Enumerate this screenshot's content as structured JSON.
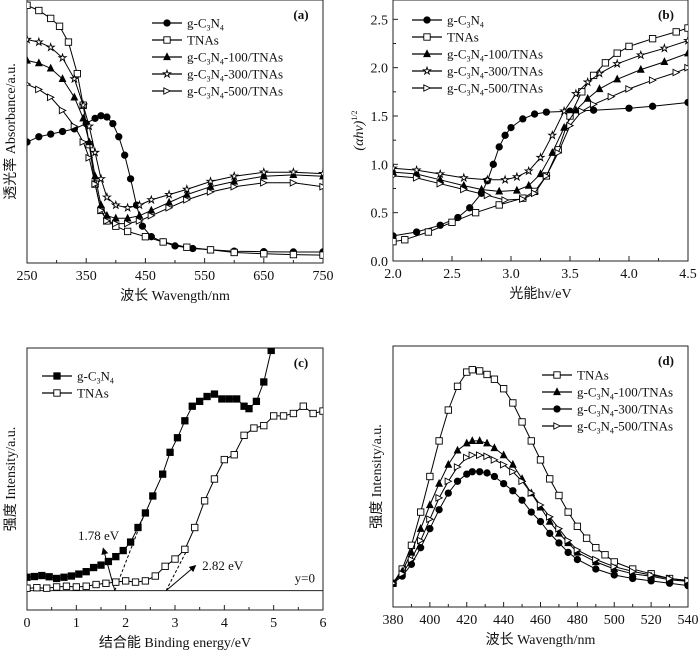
{
  "chart_data": [
    {
      "id": "a",
      "type": "line",
      "panel_label": "(a)",
      "xlabel": "波长 Wavength/nm",
      "ylabel": "透光率 Absorbance/a.u.",
      "xlim": [
        250,
        750
      ],
      "ylim": [
        0,
        1
      ],
      "xticks": [
        250,
        350,
        450,
        550,
        650,
        750
      ],
      "yticks_labeled": false,
      "legend": "top-right",
      "series": [
        {
          "name": "g-C3N4",
          "label_html": "g-C<sub>3</sub>N<sub>4</sub>",
          "marker": "circle-filled",
          "x": [
            250,
            270,
            290,
            310,
            330,
            350,
            365,
            375,
            385,
            395,
            405,
            415,
            425,
            435,
            445,
            460,
            480,
            500,
            530,
            560,
            600,
            650,
            700,
            750
          ],
          "y": [
            0.46,
            0.48,
            0.49,
            0.5,
            0.51,
            0.53,
            0.55,
            0.56,
            0.555,
            0.53,
            0.48,
            0.41,
            0.32,
            0.22,
            0.14,
            0.1,
            0.08,
            0.065,
            0.055,
            0.05,
            0.045,
            0.043,
            0.042,
            0.042
          ]
        },
        {
          "name": "TNAs",
          "label_html": "TNAs",
          "marker": "square-open",
          "x": [
            250,
            270,
            290,
            305,
            320,
            335,
            345,
            355,
            365,
            375,
            385,
            400,
            420,
            450,
            480,
            520,
            560,
            600,
            650,
            700,
            750
          ],
          "y": [
            0.98,
            0.96,
            0.93,
            0.9,
            0.84,
            0.72,
            0.6,
            0.45,
            0.3,
            0.2,
            0.16,
            0.14,
            0.12,
            0.1,
            0.08,
            0.06,
            0.05,
            0.04,
            0.035,
            0.032,
            0.03
          ]
        },
        {
          "name": "g-C3N4-100/TNAs",
          "label_html": "g-C<sub>3</sub>N<sub>4</sub>-100/TNAs",
          "marker": "triangle-filled",
          "x": [
            250,
            270,
            290,
            310,
            330,
            345,
            355,
            365,
            375,
            385,
            400,
            420,
            440,
            460,
            490,
            520,
            560,
            600,
            650,
            700,
            750
          ],
          "y": [
            0.77,
            0.76,
            0.74,
            0.7,
            0.63,
            0.55,
            0.46,
            0.33,
            0.22,
            0.18,
            0.17,
            0.17,
            0.18,
            0.2,
            0.23,
            0.26,
            0.29,
            0.31,
            0.33,
            0.335,
            0.33
          ]
        },
        {
          "name": "g-C3N4-300/TNAs",
          "label_html": "g-C<sub>3</sub>N<sub>4</sub>-300/TNAs",
          "marker": "star-open",
          "x": [
            250,
            270,
            290,
            310,
            330,
            345,
            355,
            365,
            375,
            385,
            400,
            420,
            440,
            460,
            490,
            520,
            560,
            600,
            650,
            700,
            750
          ],
          "y": [
            0.85,
            0.84,
            0.82,
            0.78,
            0.7,
            0.6,
            0.52,
            0.42,
            0.32,
            0.25,
            0.22,
            0.21,
            0.22,
            0.24,
            0.26,
            0.28,
            0.31,
            0.33,
            0.345,
            0.345,
            0.34
          ]
        },
        {
          "name": "g-C3N4-500/TNAs",
          "label_html": "g-C<sub>3</sub>N<sub>4</sub>-500/TNAs",
          "marker": "triangle-right-open",
          "x": [
            250,
            270,
            290,
            310,
            330,
            345,
            355,
            365,
            375,
            385,
            400,
            420,
            440,
            460,
            490,
            520,
            560,
            600,
            650,
            700,
            750
          ],
          "y": [
            0.68,
            0.66,
            0.63,
            0.58,
            0.52,
            0.46,
            0.4,
            0.3,
            0.2,
            0.16,
            0.15,
            0.15,
            0.16,
            0.18,
            0.21,
            0.24,
            0.27,
            0.29,
            0.305,
            0.305,
            0.29
          ]
        }
      ]
    },
    {
      "id": "b",
      "type": "line",
      "panel_label": "(b)",
      "xlabel": "光能hv/eV",
      "ylabel": "(αhv)^1/2",
      "xlim": [
        2.0,
        4.5
      ],
      "ylim": [
        0.0,
        2.7
      ],
      "xticks": [
        2.0,
        2.5,
        3.0,
        3.5,
        4.0,
        4.5
      ],
      "yticks": [
        0.0,
        0.5,
        1.0,
        1.5,
        2.0,
        2.5
      ],
      "legend": "top-left",
      "series": [
        {
          "name": "g-C3N4",
          "label_html": "g-C<sub>3</sub>N<sub>4</sub>",
          "marker": "circle-filled",
          "x": [
            2.0,
            2.2,
            2.4,
            2.55,
            2.65,
            2.75,
            2.8,
            2.85,
            2.9,
            2.95,
            3.0,
            3.1,
            3.2,
            3.3,
            3.5,
            3.7,
            4.0,
            4.2,
            4.5
          ],
          "y": [
            0.26,
            0.3,
            0.37,
            0.45,
            0.55,
            0.7,
            0.83,
            1.0,
            1.18,
            1.3,
            1.38,
            1.47,
            1.52,
            1.54,
            1.55,
            1.56,
            1.58,
            1.6,
            1.64
          ]
        },
        {
          "name": "TNAs",
          "label_html": "TNAs",
          "marker": "square-open",
          "x": [
            2.0,
            2.1,
            2.3,
            2.5,
            2.7,
            2.9,
            3.1,
            3.2,
            3.3,
            3.4,
            3.5,
            3.6,
            3.7,
            3.8,
            3.9,
            4.0,
            4.2,
            4.4,
            4.5
          ],
          "y": [
            0.2,
            0.22,
            0.3,
            0.4,
            0.5,
            0.58,
            0.65,
            0.72,
            0.88,
            1.15,
            1.5,
            1.75,
            1.92,
            2.05,
            2.15,
            2.22,
            2.3,
            2.37,
            2.41
          ]
        },
        {
          "name": "g-C3N4-100/TNAs",
          "label_html": "g-C<sub>3</sub>N<sub>4</sub>-100/TNAs",
          "marker": "triangle-filled",
          "x": [
            2.0,
            2.2,
            2.4,
            2.6,
            2.75,
            2.9,
            3.05,
            3.15,
            3.25,
            3.35,
            3.45,
            3.55,
            3.65,
            3.75,
            3.9,
            4.1,
            4.3,
            4.5
          ],
          "y": [
            0.92,
            0.9,
            0.84,
            0.78,
            0.74,
            0.72,
            0.73,
            0.78,
            0.9,
            1.12,
            1.38,
            1.56,
            1.68,
            1.78,
            1.88,
            1.98,
            2.06,
            2.15
          ]
        },
        {
          "name": "g-C3N4-300/TNAs",
          "label_html": "g-C<sub>3</sub>N<sub>4</sub>-300/TNAs",
          "marker": "star-open",
          "x": [
            2.0,
            2.2,
            2.4,
            2.6,
            2.8,
            2.95,
            3.05,
            3.15,
            3.25,
            3.35,
            3.45,
            3.55,
            3.65,
            3.75,
            3.9,
            4.1,
            4.3,
            4.5
          ],
          "y": [
            0.96,
            0.94,
            0.9,
            0.86,
            0.84,
            0.84,
            0.87,
            0.93,
            1.07,
            1.3,
            1.55,
            1.73,
            1.85,
            1.94,
            2.04,
            2.13,
            2.2,
            2.28
          ]
        },
        {
          "name": "g-C3N4-500/TNAs",
          "label_html": "g-C<sub>3</sub>N<sub>4</sub>-500/TNAs",
          "marker": "triangle-right-open",
          "x": [
            2.0,
            2.2,
            2.4,
            2.6,
            2.8,
            2.95,
            3.1,
            3.2,
            3.3,
            3.4,
            3.5,
            3.6,
            3.7,
            3.85,
            4.0,
            4.2,
            4.4,
            4.5
          ],
          "y": [
            0.88,
            0.86,
            0.8,
            0.74,
            0.68,
            0.63,
            0.64,
            0.7,
            0.88,
            1.12,
            1.4,
            1.55,
            1.62,
            1.7,
            1.78,
            1.87,
            1.95,
            2.0
          ]
        }
      ]
    },
    {
      "id": "c",
      "type": "line",
      "panel_label": "(c)",
      "xlabel": "结合能 Binding energy/eV",
      "ylabel": "强度 Intensity/a.u.",
      "xlim": [
        0,
        6
      ],
      "ylim": [
        -0.08,
        1.0
      ],
      "xticks": [
        0,
        1,
        2,
        3,
        4,
        5,
        6
      ],
      "yticks_labeled": false,
      "legend": "top-left",
      "baseline_label": "y=0",
      "annotations": [
        {
          "text": "1.78 eV",
          "x_intercept": 1.78
        },
        {
          "text": "2.82 eV",
          "x_intercept": 2.82
        }
      ],
      "series": [
        {
          "name": "g-C3N4",
          "label_html": "g-C<sub>3</sub>N<sub>4</sub>",
          "marker": "square-filled",
          "x": [
            0,
            0.15,
            0.3,
            0.45,
            0.6,
            0.75,
            0.9,
            1.05,
            1.2,
            1.35,
            1.5,
            1.65,
            1.8,
            1.95,
            2.1,
            2.25,
            2.4,
            2.55,
            2.75,
            2.9,
            3.05,
            3.2,
            3.35,
            3.5,
            3.65,
            3.8,
            3.95,
            4.1,
            4.25,
            4.4,
            4.5,
            4.65,
            4.8,
            4.95,
            5.1
          ],
          "y": [
            0.055,
            0.058,
            0.062,
            0.057,
            0.05,
            0.055,
            0.06,
            0.068,
            0.078,
            0.095,
            0.105,
            0.12,
            0.14,
            0.165,
            0.2,
            0.26,
            0.32,
            0.39,
            0.48,
            0.57,
            0.63,
            0.7,
            0.76,
            0.78,
            0.8,
            0.81,
            0.79,
            0.79,
            0.79,
            0.76,
            0.75,
            0.78,
            0.86,
            0.99,
            1.1
          ]
        },
        {
          "name": "TNAs",
          "label_html": "TNAs",
          "marker": "square-open",
          "x": [
            0,
            0.2,
            0.4,
            0.6,
            0.8,
            1.0,
            1.2,
            1.4,
            1.6,
            1.8,
            2.0,
            2.2,
            2.4,
            2.6,
            2.8,
            3.0,
            3.2,
            3.4,
            3.6,
            3.8,
            4.0,
            4.2,
            4.4,
            4.6,
            4.8,
            5.0,
            5.2,
            5.4,
            5.6,
            5.8,
            6.0
          ],
          "y": [
            0.01,
            0.012,
            0.01,
            0.015,
            0.018,
            0.015,
            0.018,
            0.025,
            0.03,
            0.035,
            0.04,
            0.035,
            0.04,
            0.06,
            0.1,
            0.13,
            0.17,
            0.26,
            0.37,
            0.46,
            0.54,
            0.56,
            0.64,
            0.67,
            0.68,
            0.72,
            0.72,
            0.73,
            0.76,
            0.73,
            0.74
          ]
        }
      ]
    },
    {
      "id": "d",
      "type": "line",
      "panel_label": "(d)",
      "xlabel": "波长 Wavength/nm",
      "ylabel": "强度 Intensity/a.u.",
      "xlim": [
        380,
        540
      ],
      "ylim": [
        -0.1,
        1.0
      ],
      "xticks": [
        380,
        400,
        420,
        440,
        460,
        480,
        500,
        520,
        540
      ],
      "yticks_labeled": false,
      "legend": "top-right",
      "series": [
        {
          "name": "TNAs",
          "label_html": "TNAs",
          "marker": "square-open",
          "x": [
            380,
            385,
            390,
            395,
            400,
            405,
            410,
            415,
            420,
            423,
            427,
            431,
            435,
            440,
            445,
            450,
            455,
            460,
            465,
            470,
            475,
            480,
            485,
            490,
            495,
            500,
            510,
            520,
            530,
            540
          ],
          "y": [
            0.0,
            0.06,
            0.16,
            0.3,
            0.45,
            0.6,
            0.73,
            0.83,
            0.89,
            0.9,
            0.895,
            0.88,
            0.86,
            0.82,
            0.76,
            0.68,
            0.6,
            0.52,
            0.44,
            0.37,
            0.3,
            0.24,
            0.19,
            0.15,
            0.12,
            0.09,
            0.06,
            0.04,
            0.02,
            0.01
          ]
        },
        {
          "name": "g-C3N4-100/TNAs",
          "label_html": "g-C<sub>3</sub>N<sub>4</sub>-100/TNAs",
          "marker": "triangle-filled",
          "x": [
            380,
            385,
            390,
            395,
            400,
            405,
            410,
            415,
            420,
            423,
            427,
            431,
            435,
            440,
            445,
            450,
            455,
            460,
            465,
            470,
            475,
            480,
            490,
            500,
            510,
            520,
            530,
            540
          ],
          "y": [
            0.0,
            0.05,
            0.13,
            0.23,
            0.33,
            0.42,
            0.5,
            0.56,
            0.59,
            0.6,
            0.6,
            0.59,
            0.57,
            0.54,
            0.5,
            0.44,
            0.38,
            0.32,
            0.26,
            0.21,
            0.17,
            0.13,
            0.09,
            0.06,
            0.04,
            0.03,
            0.015,
            0.008
          ]
        },
        {
          "name": "g-C3N4-300/TNAs",
          "label_html": "g-C<sub>3</sub>N<sub>4</sub>-300/TNAs",
          "marker": "circle-filled",
          "x": [
            380,
            385,
            390,
            395,
            400,
            405,
            410,
            415,
            420,
            423,
            427,
            431,
            435,
            440,
            445,
            450,
            455,
            460,
            465,
            470,
            475,
            480,
            490,
            500,
            510,
            520,
            530,
            540
          ],
          "y": [
            0.0,
            0.03,
            0.08,
            0.15,
            0.23,
            0.31,
            0.38,
            0.43,
            0.46,
            0.47,
            0.47,
            0.465,
            0.45,
            0.42,
            0.39,
            0.35,
            0.3,
            0.26,
            0.21,
            0.17,
            0.13,
            0.1,
            0.06,
            0.035,
            0.02,
            0.01,
            0.0,
            -0.01
          ]
        },
        {
          "name": "g-C3N4-500/TNAs",
          "label_html": "g-C<sub>3</sub>N<sub>4</sub>-500/TNAs",
          "marker": "triangle-right-open",
          "x": [
            380,
            385,
            390,
            395,
            400,
            405,
            410,
            415,
            420,
            423,
            427,
            431,
            435,
            440,
            445,
            450,
            455,
            460,
            465,
            470,
            475,
            480,
            490,
            500,
            510,
            520,
            530,
            540
          ],
          "y": [
            0.0,
            0.04,
            0.1,
            0.18,
            0.27,
            0.36,
            0.43,
            0.49,
            0.53,
            0.54,
            0.54,
            0.535,
            0.52,
            0.5,
            0.47,
            0.43,
            0.38,
            0.33,
            0.28,
            0.23,
            0.18,
            0.14,
            0.1,
            0.07,
            0.05,
            0.035,
            0.02,
            0.012
          ]
        }
      ]
    }
  ]
}
